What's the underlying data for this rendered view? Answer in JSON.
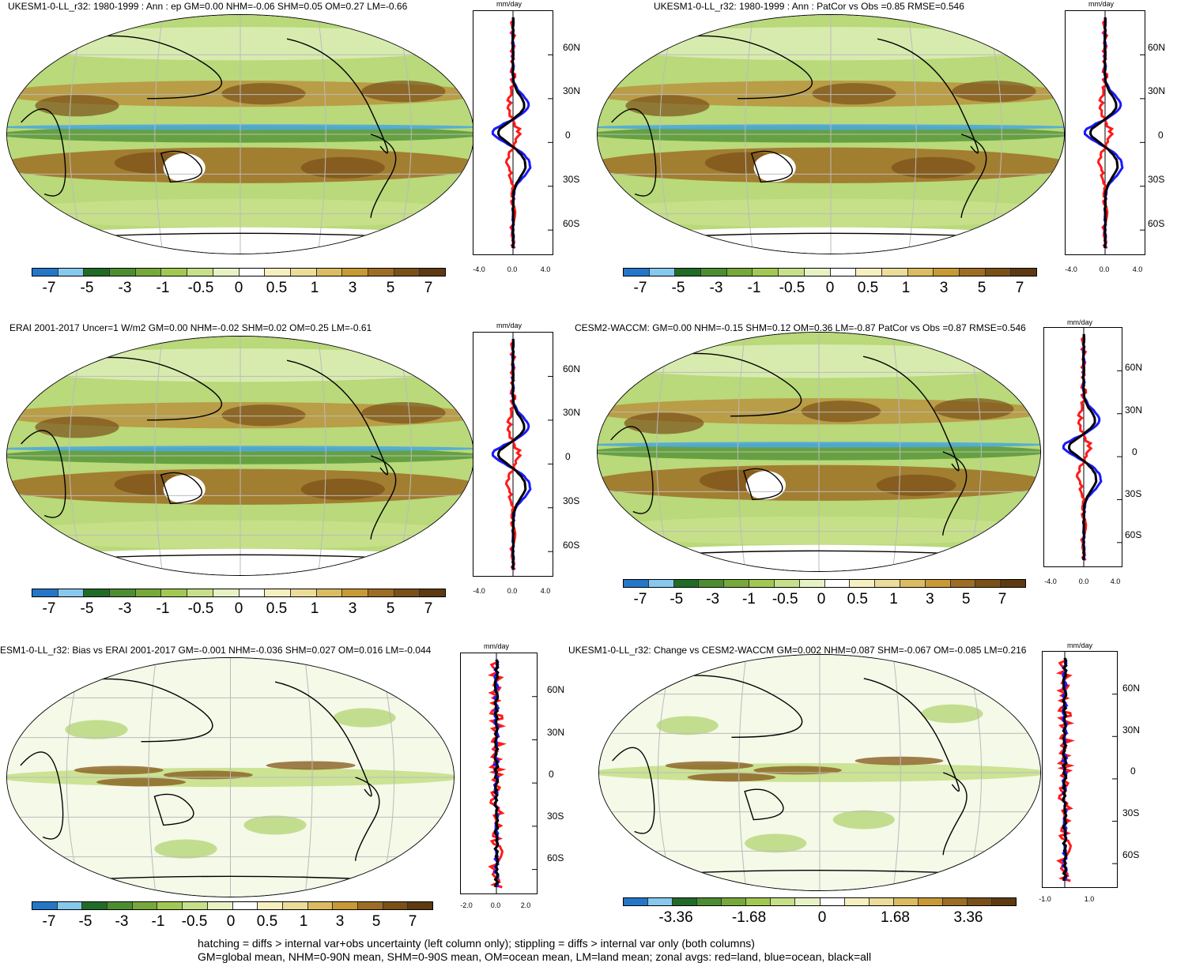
{
  "panels": [
    {
      "title": "UKESM1-0-LL_r32: 1980-1999 : Ann : ep GM=0.00 NHM=-0.06 SHM=0.05 OM=0.27 LM=-0.66",
      "units": "mm/day",
      "lat_ticks": [
        "60N",
        "30N",
        "0",
        "30S",
        "60S"
      ],
      "x_ticks": [
        "-4.0",
        "0.0",
        "4.0"
      ],
      "colorbar_labels": [
        "-7",
        "-5",
        "-3",
        "-1",
        "-0.5",
        "0",
        "0.5",
        "1",
        "3",
        "5",
        "7"
      ],
      "colorbar_colors": [
        "#2477c8",
        "#86c8ee",
        "#216b28",
        "#4d8d31",
        "#76a93a",
        "#a1c952",
        "#c6e089",
        "#e6f2c4",
        "#ffffff",
        "#f6efc0",
        "#ebdc99",
        "#dcbc60",
        "#c89a36",
        "#9e6d24",
        "#7b5018",
        "#5e3a10"
      ],
      "hatching": true
    },
    {
      "title": "UKESM1-0-LL_r32: 1980-1999 : Ann : PatCor vs Obs =0.85 RMSE=0.546",
      "units": "mm/day",
      "lat_ticks": [
        "60N",
        "30N",
        "0",
        "30S",
        "60S"
      ],
      "x_ticks": [
        "-4.0",
        "0.0",
        "4.0"
      ],
      "colorbar_labels": [
        "-7",
        "-5",
        "-3",
        "-1",
        "-0.5",
        "0",
        "0.5",
        "1",
        "3",
        "5",
        "7"
      ],
      "colorbar_colors": [
        "#2477c8",
        "#86c8ee",
        "#216b28",
        "#4d8d31",
        "#76a93a",
        "#a1c952",
        "#c6e089",
        "#e6f2c4",
        "#ffffff",
        "#f6efc0",
        "#ebdc99",
        "#dcbc60",
        "#c89a36",
        "#9e6d24",
        "#7b5018",
        "#5e3a10"
      ],
      "hatching": false
    },
    {
      "title": "ERAI 2001-2017 Uncer=1 W/m2 GM=0.00 NHM=-0.02 SHM=0.02 OM=0.25 LM=-0.61",
      "units": "mm/day",
      "lat_ticks": [
        "60N",
        "30N",
        "0",
        "30S",
        "60S"
      ],
      "x_ticks": [
        "-4.0",
        "0.0",
        "4.0"
      ],
      "colorbar_labels": [
        "-7",
        "-5",
        "-3",
        "-1",
        "-0.5",
        "0",
        "0.5",
        "1",
        "3",
        "5",
        "7"
      ],
      "colorbar_colors": [
        "#2477c8",
        "#86c8ee",
        "#216b28",
        "#4d8d31",
        "#76a93a",
        "#a1c952",
        "#c6e089",
        "#e6f2c4",
        "#ffffff",
        "#f6efc0",
        "#ebdc99",
        "#dcbc60",
        "#c89a36",
        "#9e6d24",
        "#7b5018",
        "#5e3a10"
      ],
      "hatching": true
    },
    {
      "title": "CESM2-WACCM: GM=0.00 NHM=-0.15 SHM=0.12 OM=0.36 LM=-0.87 PatCor vs Obs =0.87 RMSE=0.546",
      "units": "mm/day",
      "lat_ticks": [
        "60N",
        "30N",
        "0",
        "30S",
        "60S"
      ],
      "x_ticks": [
        "-4.0",
        "0.0",
        "4.0"
      ],
      "colorbar_labels": [
        "-7",
        "-5",
        "-3",
        "-1",
        "-0.5",
        "0",
        "0.5",
        "1",
        "3",
        "5",
        "7"
      ],
      "colorbar_colors": [
        "#2477c8",
        "#86c8ee",
        "#216b28",
        "#4d8d31",
        "#76a93a",
        "#a1c952",
        "#c6e089",
        "#e6f2c4",
        "#ffffff",
        "#f6efc0",
        "#ebdc99",
        "#dcbc60",
        "#c89a36",
        "#9e6d24",
        "#7b5018",
        "#5e3a10"
      ],
      "hatching": false
    },
    {
      "title": "ESM1-0-LL_r32: Bias vs ERAI 2001-2017 GM=-0.001 NHM=-0.036 SHM=0.027 OM=0.016 LM=-0.044",
      "units": "mm/day",
      "lat_ticks": [
        "60N",
        "30N",
        "0",
        "30S",
        "60S"
      ],
      "x_ticks": [
        "-2.0",
        "0.0",
        "2.0"
      ],
      "colorbar_labels": [
        "-7",
        "-5",
        "-3",
        "-1",
        "-0.5",
        "0",
        "0.5",
        "1",
        "3",
        "5",
        "7"
      ],
      "colorbar_colors": [
        "#2477c8",
        "#86c8ee",
        "#216b28",
        "#4d8d31",
        "#76a93a",
        "#a1c952",
        "#c6e089",
        "#e6f2c4",
        "#ffffff",
        "#f6efc0",
        "#ebdc99",
        "#dcbc60",
        "#c89a36",
        "#9e6d24",
        "#7b5018",
        "#5e3a10"
      ],
      "hatching": true
    },
    {
      "title": "UKESM1-0-LL_r32: Change vs CESM2-WACCM GM=0.002 NHM=0.087 SHM=-0.067 OM=-0.085 LM=0.216",
      "units": "mm/day",
      "lat_ticks": [
        "60N",
        "30N",
        "0",
        "30S",
        "60S"
      ],
      "x_ticks": [
        "-1.0",
        "1.0"
      ],
      "colorbar_labels": [
        "-3.36",
        "-1.68",
        "0",
        "1.68",
        "3.36"
      ],
      "colorbar_colors": [
        "#2477c8",
        "#86c8ee",
        "#216b28",
        "#4d8d31",
        "#76a93a",
        "#a1c952",
        "#c6e089",
        "#e6f2c4",
        "#ffffff",
        "#f6efc0",
        "#ebdc99",
        "#dcbc60",
        "#c89a36",
        "#9e6d24",
        "#7b5018",
        "#5e3a10"
      ],
      "hatching": false
    }
  ],
  "footer": {
    "line1": "hatching = diffs > internal var+obs uncertainty (left column only); stippling = diffs > internal var only (both columns)",
    "line2": "GM=global mean, NHM=0-90N mean, SHM=0-90S mean, OM=ocean mean, LM=land mean; zonal avgs: red=land, blue=ocean, black=all"
  },
  "legend_colors": {
    "land": "#ff1a1a",
    "ocean": "#1a1aff",
    "all": "#000000"
  }
}
